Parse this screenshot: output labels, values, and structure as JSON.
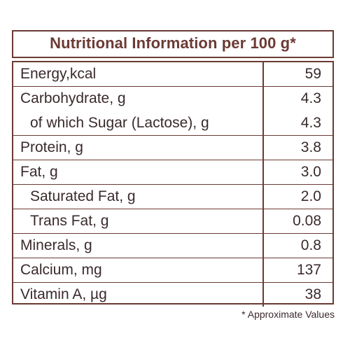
{
  "title": "Nutritional Information per 100 g*",
  "rows": [
    {
      "nutrient": "Energy,kcal",
      "value": "59"
    },
    {
      "nutrient": "Carbohydrate, g",
      "value": "4.3"
    },
    {
      "nutrient": "of which Sugar (Lactose), g",
      "value": "4.3"
    },
    {
      "nutrient": "Protein, g",
      "value": "3.8"
    },
    {
      "nutrient": "Fat, g",
      "value": "3.0"
    },
    {
      "nutrient": "Saturated Fat, g",
      "value": "2.0"
    },
    {
      "nutrient": "Trans Fat, g",
      "value": "0.08"
    },
    {
      "nutrient": "Minerals, g",
      "value": "0.8"
    },
    {
      "nutrient": "Calcium, mg",
      "value": "137"
    },
    {
      "nutrient": "Vitamin A, µg",
      "value": "38"
    }
  ],
  "footnote": "* Approximate Values",
  "colors": {
    "border": "#6b3a34",
    "text": "#3a2a2c"
  }
}
